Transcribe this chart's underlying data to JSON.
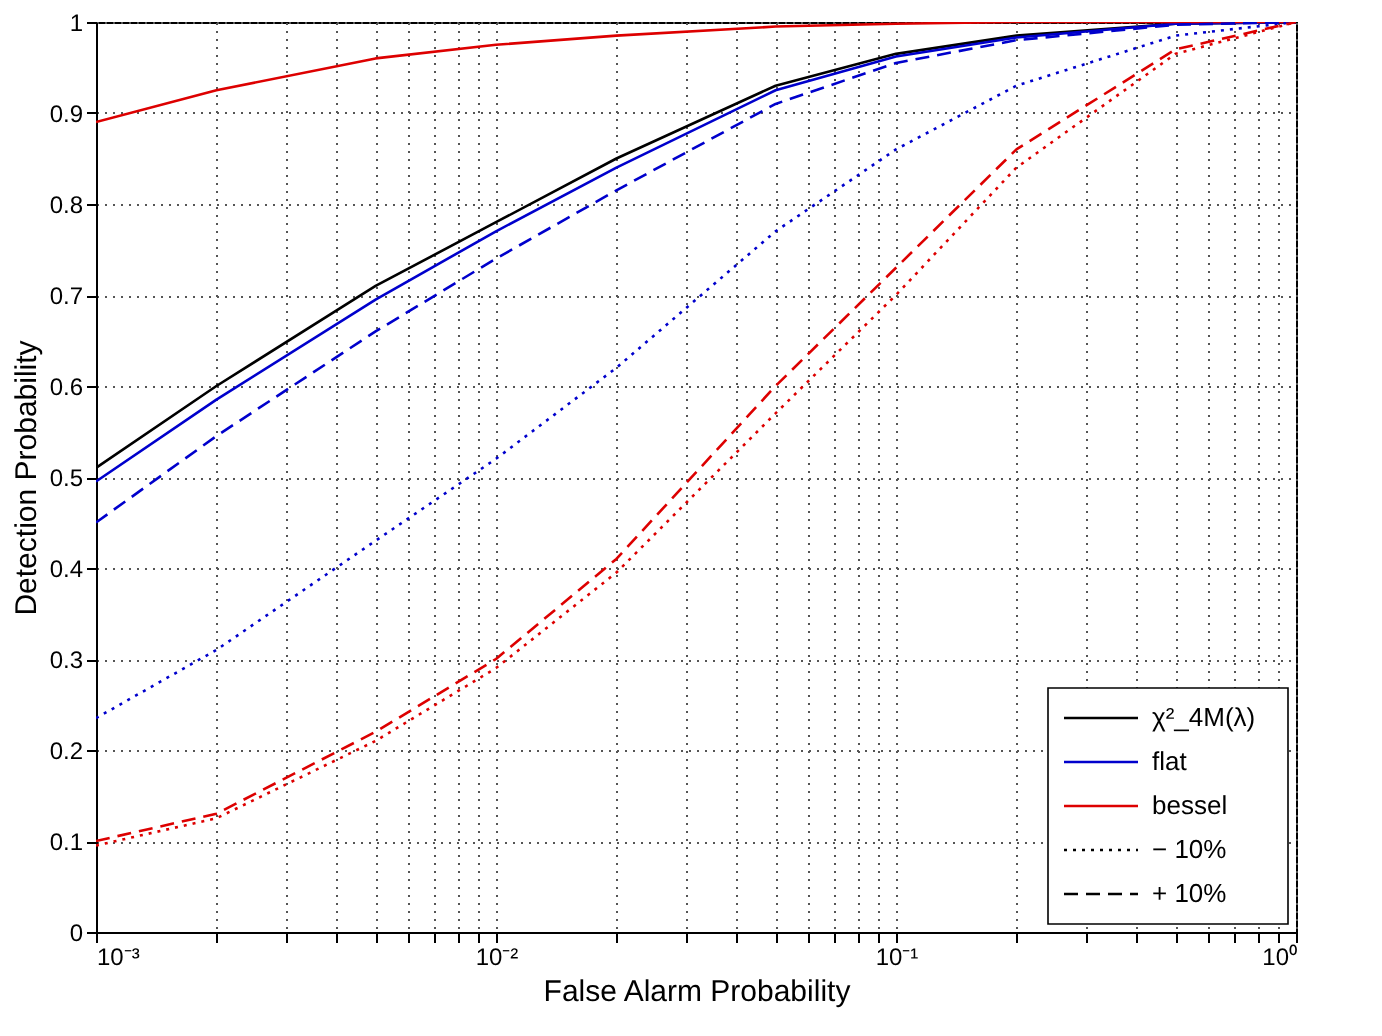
{
  "chart_data": {
    "type": "line",
    "xlabel": "False Alarm Probability",
    "ylabel": "Detection Probability",
    "x": [
      0.001,
      0.002,
      0.005,
      0.01,
      0.02,
      0.05,
      0.1,
      0.2,
      0.5,
      1
    ],
    "series": [
      {
        "name": "χ²_4M(λ)",
        "color": "#000000",
        "line_style": "solid",
        "values": [
          0.51,
          0.6,
          0.71,
          0.78,
          0.85,
          0.93,
          0.965,
          0.985,
          0.998,
          1
        ]
      },
      {
        "name": "flat",
        "color": "#0000cc",
        "line_style": "solid",
        "values": [
          0.495,
          0.585,
          0.695,
          0.77,
          0.84,
          0.925,
          0.962,
          0.983,
          0.998,
          1
        ]
      },
      {
        "name": "bessel",
        "color": "#dd0000",
        "line_style": "solid",
        "values": [
          0.89,
          0.925,
          0.96,
          0.975,
          0.985,
          0.995,
          0.998,
          1,
          1,
          1
        ]
      },
      {
        "color": "#0000cc",
        "line_style": "dotted",
        "values": [
          0.235,
          0.31,
          0.43,
          0.52,
          0.62,
          0.77,
          0.86,
          0.93,
          0.985,
          1
        ]
      },
      {
        "color": "#dd0000",
        "line_style": "dotted",
        "values": [
          0.095,
          0.125,
          0.21,
          0.29,
          0.395,
          0.57,
          0.7,
          0.84,
          0.965,
          1
        ]
      },
      {
        "color": "#0000cc",
        "line_style": "dashed",
        "values": [
          0.45,
          0.545,
          0.66,
          0.74,
          0.815,
          0.91,
          0.955,
          0.98,
          0.997,
          1
        ]
      },
      {
        "color": "#dd0000",
        "line_style": "dashed",
        "values": [
          0.1,
          0.13,
          0.22,
          0.3,
          0.41,
          0.6,
          0.73,
          0.86,
          0.97,
          1
        ]
      }
    ],
    "annotations": [
      "− 10%",
      "+ 10%"
    ],
    "log": "x",
    "xlim": [
      0.001,
      1
    ],
    "ylim": [
      0,
      1
    ],
    "xticks": [
      {
        "value": 0.001,
        "label": "10⁻³"
      },
      {
        "value": 0.002,
        "label": null
      },
      {
        "value": 0.003,
        "label": null
      },
      {
        "value": 0.004,
        "label": null
      },
      {
        "value": 0.005,
        "label": null
      },
      {
        "value": 0.006,
        "label": null
      },
      {
        "value": 0.007,
        "label": null
      },
      {
        "value": 0.008,
        "label": null
      },
      {
        "value": 0.009,
        "label": null
      },
      {
        "value": 0.01,
        "label": "10⁻²"
      },
      {
        "value": 0.02,
        "label": null
      },
      {
        "value": 0.03,
        "label": null
      },
      {
        "value": 0.04,
        "label": null
      },
      {
        "value": 0.05,
        "label": null
      },
      {
        "value": 0.06,
        "label": null
      },
      {
        "value": 0.07,
        "label": null
      },
      {
        "value": 0.08,
        "label": null
      },
      {
        "value": 0.09,
        "label": null
      },
      {
        "value": 0.1,
        "label": "10⁻¹"
      },
      {
        "value": 0.2,
        "label": null
      },
      {
        "value": 0.3,
        "label": null
      },
      {
        "value": 0.4,
        "label": null
      },
      {
        "value": 0.5,
        "label": null
      },
      {
        "value": 0.6,
        "label": null
      },
      {
        "value": 0.7,
        "label": null
      },
      {
        "value": 0.8,
        "label": null
      },
      {
        "value": 0.9,
        "label": null
      },
      {
        "value": 1,
        "label": "10⁰"
      }
    ],
    "yticks": [
      0,
      0.1,
      0.2,
      0.3,
      0.4,
      0.5,
      0.6,
      0.7,
      0.8,
      0.9,
      1
    ],
    "grid": true,
    "legend": "bottom right"
  }
}
